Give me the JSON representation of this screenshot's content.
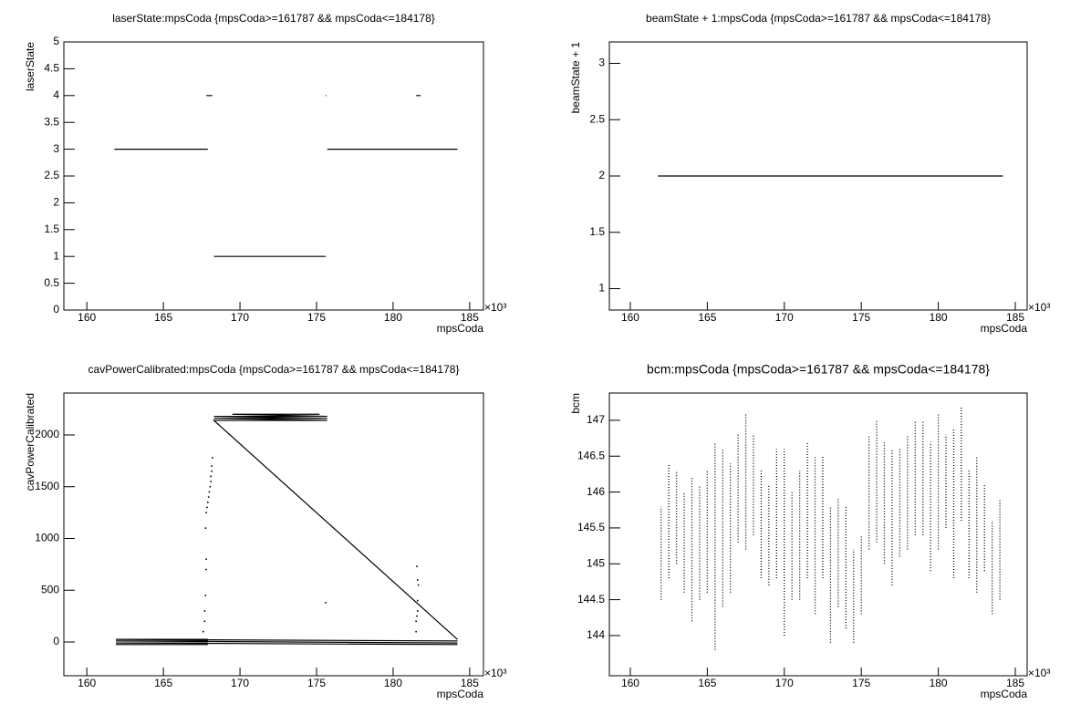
{
  "chart_data": [
    {
      "type": "line",
      "title": "laserState:mpsCoda {mpsCoda>=161787 && mpsCoda<=184178}",
      "x_label": "mpsCoda",
      "y_label": "laserState",
      "x_multiplier_label": "×10³",
      "xlim": [
        158.5,
        185.9
      ],
      "xticks": [
        160,
        165,
        170,
        175,
        180,
        185
      ],
      "ylim": [
        0,
        5
      ],
      "yticks": [
        0,
        0.5,
        1,
        1.5,
        2,
        2.5,
        3,
        3.5,
        4,
        4.5,
        5
      ],
      "series": [
        {
          "color": "#000000",
          "style": "lines",
          "x": [
            161.8,
            167.9,
            168.0,
            167.8,
            168.2,
            168.1,
            168.3,
            175.6,
            175.6,
            175.6,
            175.65,
            175.7,
            175.7,
            184.2,
            184.0,
            181.5,
            181.8
          ],
          "values": [
            3,
            3,
            null,
            4,
            4,
            null,
            1,
            1,
            null,
            4,
            4,
            null,
            3,
            3,
            null,
            4,
            4
          ]
        }
      ]
    },
    {
      "type": "line",
      "title": "beamState + 1:mpsCoda {mpsCoda>=161787 && mpsCoda<=184178}",
      "x_label": "mpsCoda",
      "y_label": "beamState + 1",
      "x_multiplier_label": "×10³",
      "xlim": [
        158.64,
        185.77
      ],
      "xticks": [
        160,
        165,
        170,
        175,
        180,
        185
      ],
      "ylim": [
        0.81,
        3.19
      ],
      "yticks": [
        1,
        1.5,
        2,
        2.5,
        3
      ],
      "series": [
        {
          "color": "#000000",
          "style": "lines",
          "x": [
            161.8,
            184.2
          ],
          "values": [
            2,
            2
          ]
        }
      ]
    },
    {
      "type": "line",
      "title": "cavPowerCalibrated:mpsCoda {mpsCoda>=161787 && mpsCoda<=184178}",
      "x_label": "mpsCoda",
      "y_label": "cavPowerCalibrated",
      "x_multiplier_label": "×10³",
      "xlim": [
        158.5,
        185.9
      ],
      "xticks": [
        160,
        165,
        170,
        175,
        180,
        185
      ],
      "ylim": [
        -326,
        2405
      ],
      "yticks": [
        0,
        500,
        1000,
        1500,
        2000
      ],
      "series": [
        {
          "color": "#000000",
          "style": "lines",
          "x": [
            161.9,
            167.9,
            175.7,
            184.2,
            161.9,
            167.9,
            175.7,
            184.2,
            161.9,
            167.9,
            175.7,
            184.2,
            161.9,
            167.9,
            175.7,
            184.2,
            168.3,
            175.7,
            168.3,
            175.7,
            168.3,
            175.7,
            169.5,
            175.2
          ],
          "values": [
            -25,
            -25,
            null,
            -25,
            -10,
            -10,
            null,
            -10,
            10,
            10,
            null,
            10,
            25,
            25,
            null,
            25,
            2140,
            2140,
            2160,
            2160,
            2180,
            2180,
            2200,
            2200
          ]
        },
        {
          "color": "#000000",
          "style": "points",
          "x": [
            167.6,
            167.7,
            167.7,
            167.75,
            167.8,
            167.8,
            167.75,
            167.8,
            167.85,
            167.9,
            167.95,
            168.0,
            168.05,
            168.1,
            168.1,
            168.15,
            168.15,
            168.2,
            175.6,
            181.5,
            181.5,
            181.55,
            181.6,
            181.6,
            181.65,
            181.6,
            181.55
          ],
          "values": [
            100,
            200,
            300,
            450,
            700,
            800,
            1100,
            1250,
            1300,
            1350,
            1400,
            1450,
            1500,
            1550,
            1600,
            1650,
            1700,
            1780,
            380,
            100,
            200,
            250,
            300,
            400,
            550,
            600,
            730
          ]
        }
      ]
    },
    {
      "type": "range",
      "title": "bcm:mpsCoda {mpsCoda>=161787 && mpsCoda<=184178}",
      "x_label": "mpsCoda",
      "y_label": "bcm",
      "x_multiplier_label": "×10³",
      "xlim": [
        158.64,
        185.77
      ],
      "xticks": [
        160,
        165,
        170,
        175,
        180,
        185
      ],
      "ylim": [
        143.44,
        147.38
      ],
      "yticks": [
        144,
        144.5,
        145,
        145.5,
        146,
        146.5,
        147
      ],
      "series": [
        {
          "color": "#000000",
          "x": [
            162,
            162.5,
            163,
            163.5,
            164,
            164.5,
            165,
            165.5,
            166,
            166.5,
            167,
            167.5,
            168,
            168.5,
            169,
            169.5,
            170,
            170.5,
            171,
            171.5,
            172,
            172.5,
            173,
            173.5,
            174,
            174.5,
            175,
            175.5,
            176,
            176.5,
            177,
            177.5,
            178,
            178.5,
            179,
            179.5,
            180,
            180.5,
            181,
            181.5,
            182,
            182.5,
            183,
            183.5,
            184
          ],
          "low": [
            144.5,
            144.8,
            145.0,
            144.6,
            144.2,
            144.5,
            144.6,
            143.8,
            144.4,
            144.6,
            145.3,
            145.2,
            145.4,
            144.8,
            144.7,
            144.8,
            144.0,
            144.5,
            144.5,
            144.8,
            144.3,
            144.8,
            143.9,
            144.4,
            144.1,
            143.9,
            144.3,
            145.2,
            145.3,
            145.0,
            144.7,
            145.1,
            145.2,
            145.4,
            145.4,
            144.9,
            145.2,
            145.5,
            144.8,
            145.6,
            144.8,
            144.6,
            144.9,
            144.3,
            144.5
          ],
          "high": [
            145.8,
            146.4,
            146.3,
            146.0,
            146.2,
            146.1,
            146.3,
            146.7,
            146.6,
            146.4,
            146.8,
            147.1,
            146.8,
            146.3,
            146.1,
            146.6,
            146.6,
            146.0,
            146.3,
            146.7,
            146.5,
            146.5,
            145.8,
            145.9,
            145.8,
            145.2,
            145.4,
            146.8,
            147.0,
            146.7,
            146.6,
            146.6,
            146.8,
            147.0,
            147.0,
            146.7,
            147.1,
            146.8,
            146.9,
            147.2,
            146.3,
            146.5,
            146.1,
            145.6,
            145.9
          ]
        }
      ]
    }
  ]
}
